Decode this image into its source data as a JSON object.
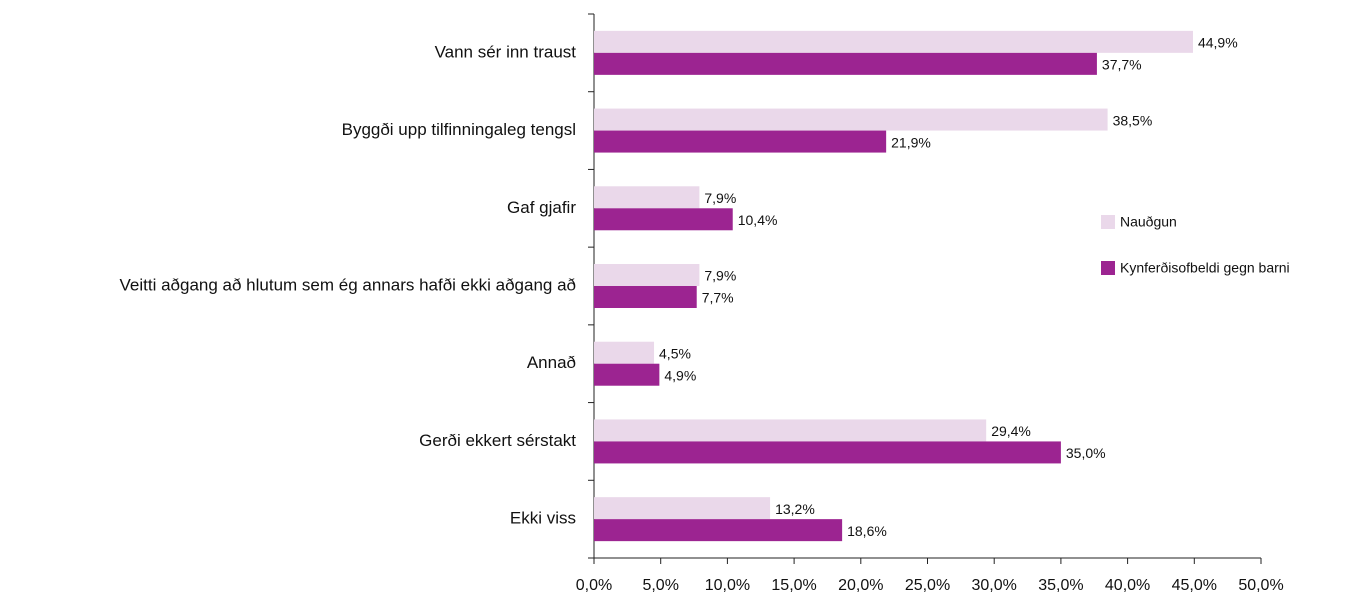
{
  "chart_data": {
    "type": "bar",
    "orientation": "horizontal",
    "categories": [
      "Vann sér inn traust",
      "Byggði upp tilfinningaleg tengsl",
      "Gaf gjafir",
      "Veitti aðgang að hlutum sem ég annars hafði ekki aðgang að",
      "Annað",
      "Gerði ekkert sérstakt",
      "Ekki viss"
    ],
    "series": [
      {
        "name": "Nauðgun",
        "color": "#ead8ea",
        "values": [
          44.9,
          38.5,
          7.9,
          7.9,
          4.5,
          29.4,
          13.2
        ],
        "value_labels": [
          "44,9%",
          "38,5%",
          "7,9%",
          "7,9%",
          "4,5%",
          "29,4%",
          "13,2%"
        ]
      },
      {
        "name": "Kynferðisofbeldi gegn barni",
        "color": "#9c2491",
        "values": [
          37.7,
          21.9,
          10.4,
          7.7,
          4.9,
          35.0,
          18.6
        ],
        "value_labels": [
          "37,7%",
          "21,9%",
          "10,4%",
          "7,7%",
          "4,9%",
          "35,0%",
          "18,6%"
        ]
      }
    ],
    "xlim": [
      0,
      50
    ],
    "xticks": [
      {
        "value": 0,
        "label": "0,0%"
      },
      {
        "value": 5,
        "label": "5,0%"
      },
      {
        "value": 10,
        "label": "10,0%"
      },
      {
        "value": 15,
        "label": "15,0%"
      },
      {
        "value": 20,
        "label": "20,0%"
      },
      {
        "value": 25,
        "label": "25,0%"
      },
      {
        "value": 30,
        "label": "30,0%"
      },
      {
        "value": 35,
        "label": "35,0%"
      },
      {
        "value": 40,
        "label": "40,0%"
      },
      {
        "value": 45,
        "label": "45,0%"
      },
      {
        "value": 50,
        "label": "50,0%"
      }
    ],
    "legend": "right"
  }
}
